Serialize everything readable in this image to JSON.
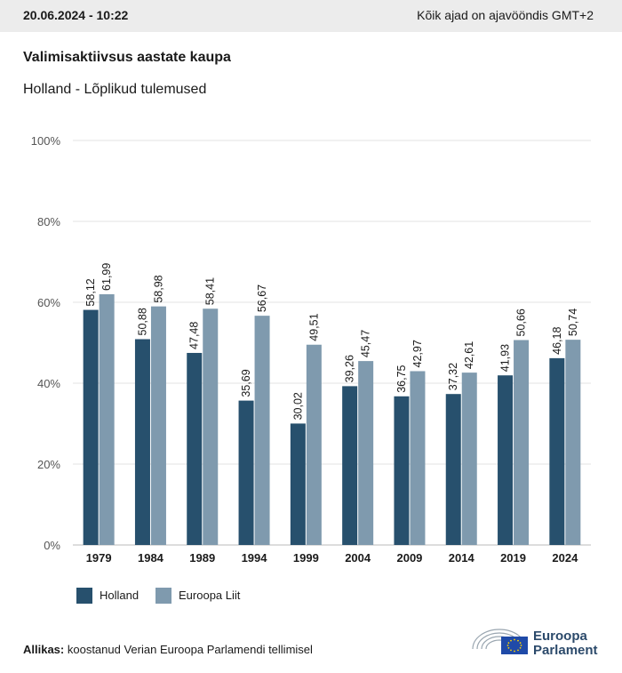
{
  "header": {
    "datetime": "20.06.2024 - 10:22",
    "timezone_note": "Kõik ajad on ajavööndis GMT+2"
  },
  "title": "Valimisaktiivsus aastate kaupa",
  "subtitle": "Holland - Lõplikud tulemused",
  "chart_data": {
    "type": "bar",
    "categories": [
      "1979",
      "1984",
      "1989",
      "1994",
      "1999",
      "2004",
      "2009",
      "2014",
      "2019",
      "2024"
    ],
    "series": [
      {
        "name": "Holland",
        "color": "#27506d",
        "values": [
          58.12,
          50.88,
          47.48,
          35.69,
          30.02,
          39.26,
          36.75,
          37.32,
          41.93,
          46.18
        ],
        "labels": [
          "58,12",
          "50,88",
          "47,48",
          "35,69",
          "30,02",
          "39,26",
          "36,75",
          "37,32",
          "41,93",
          "46,18"
        ]
      },
      {
        "name": "Euroopa Liit",
        "color": "#7f9aae",
        "values": [
          61.99,
          58.98,
          58.41,
          56.67,
          49.51,
          45.47,
          42.97,
          42.61,
          50.66,
          50.74
        ],
        "labels": [
          "61,99",
          "58,98",
          "58,41",
          "56,67",
          "49,51",
          "45,47",
          "42,97",
          "42,61",
          "50,66",
          "50,74"
        ]
      }
    ],
    "ylim": [
      0,
      100
    ],
    "yticks": [
      0,
      20,
      40,
      60,
      80,
      100
    ],
    "ytick_labels": [
      "0%",
      "20%",
      "40%",
      "60%",
      "80%",
      "100%"
    ],
    "grid": true,
    "legend_position": "bottom-left"
  },
  "source": {
    "label": "Allikas:",
    "text": " koostanud Verian Euroopa Parlamendi tellimisel"
  },
  "logo": {
    "line1": "Euroopa",
    "line2": "Parlament"
  }
}
